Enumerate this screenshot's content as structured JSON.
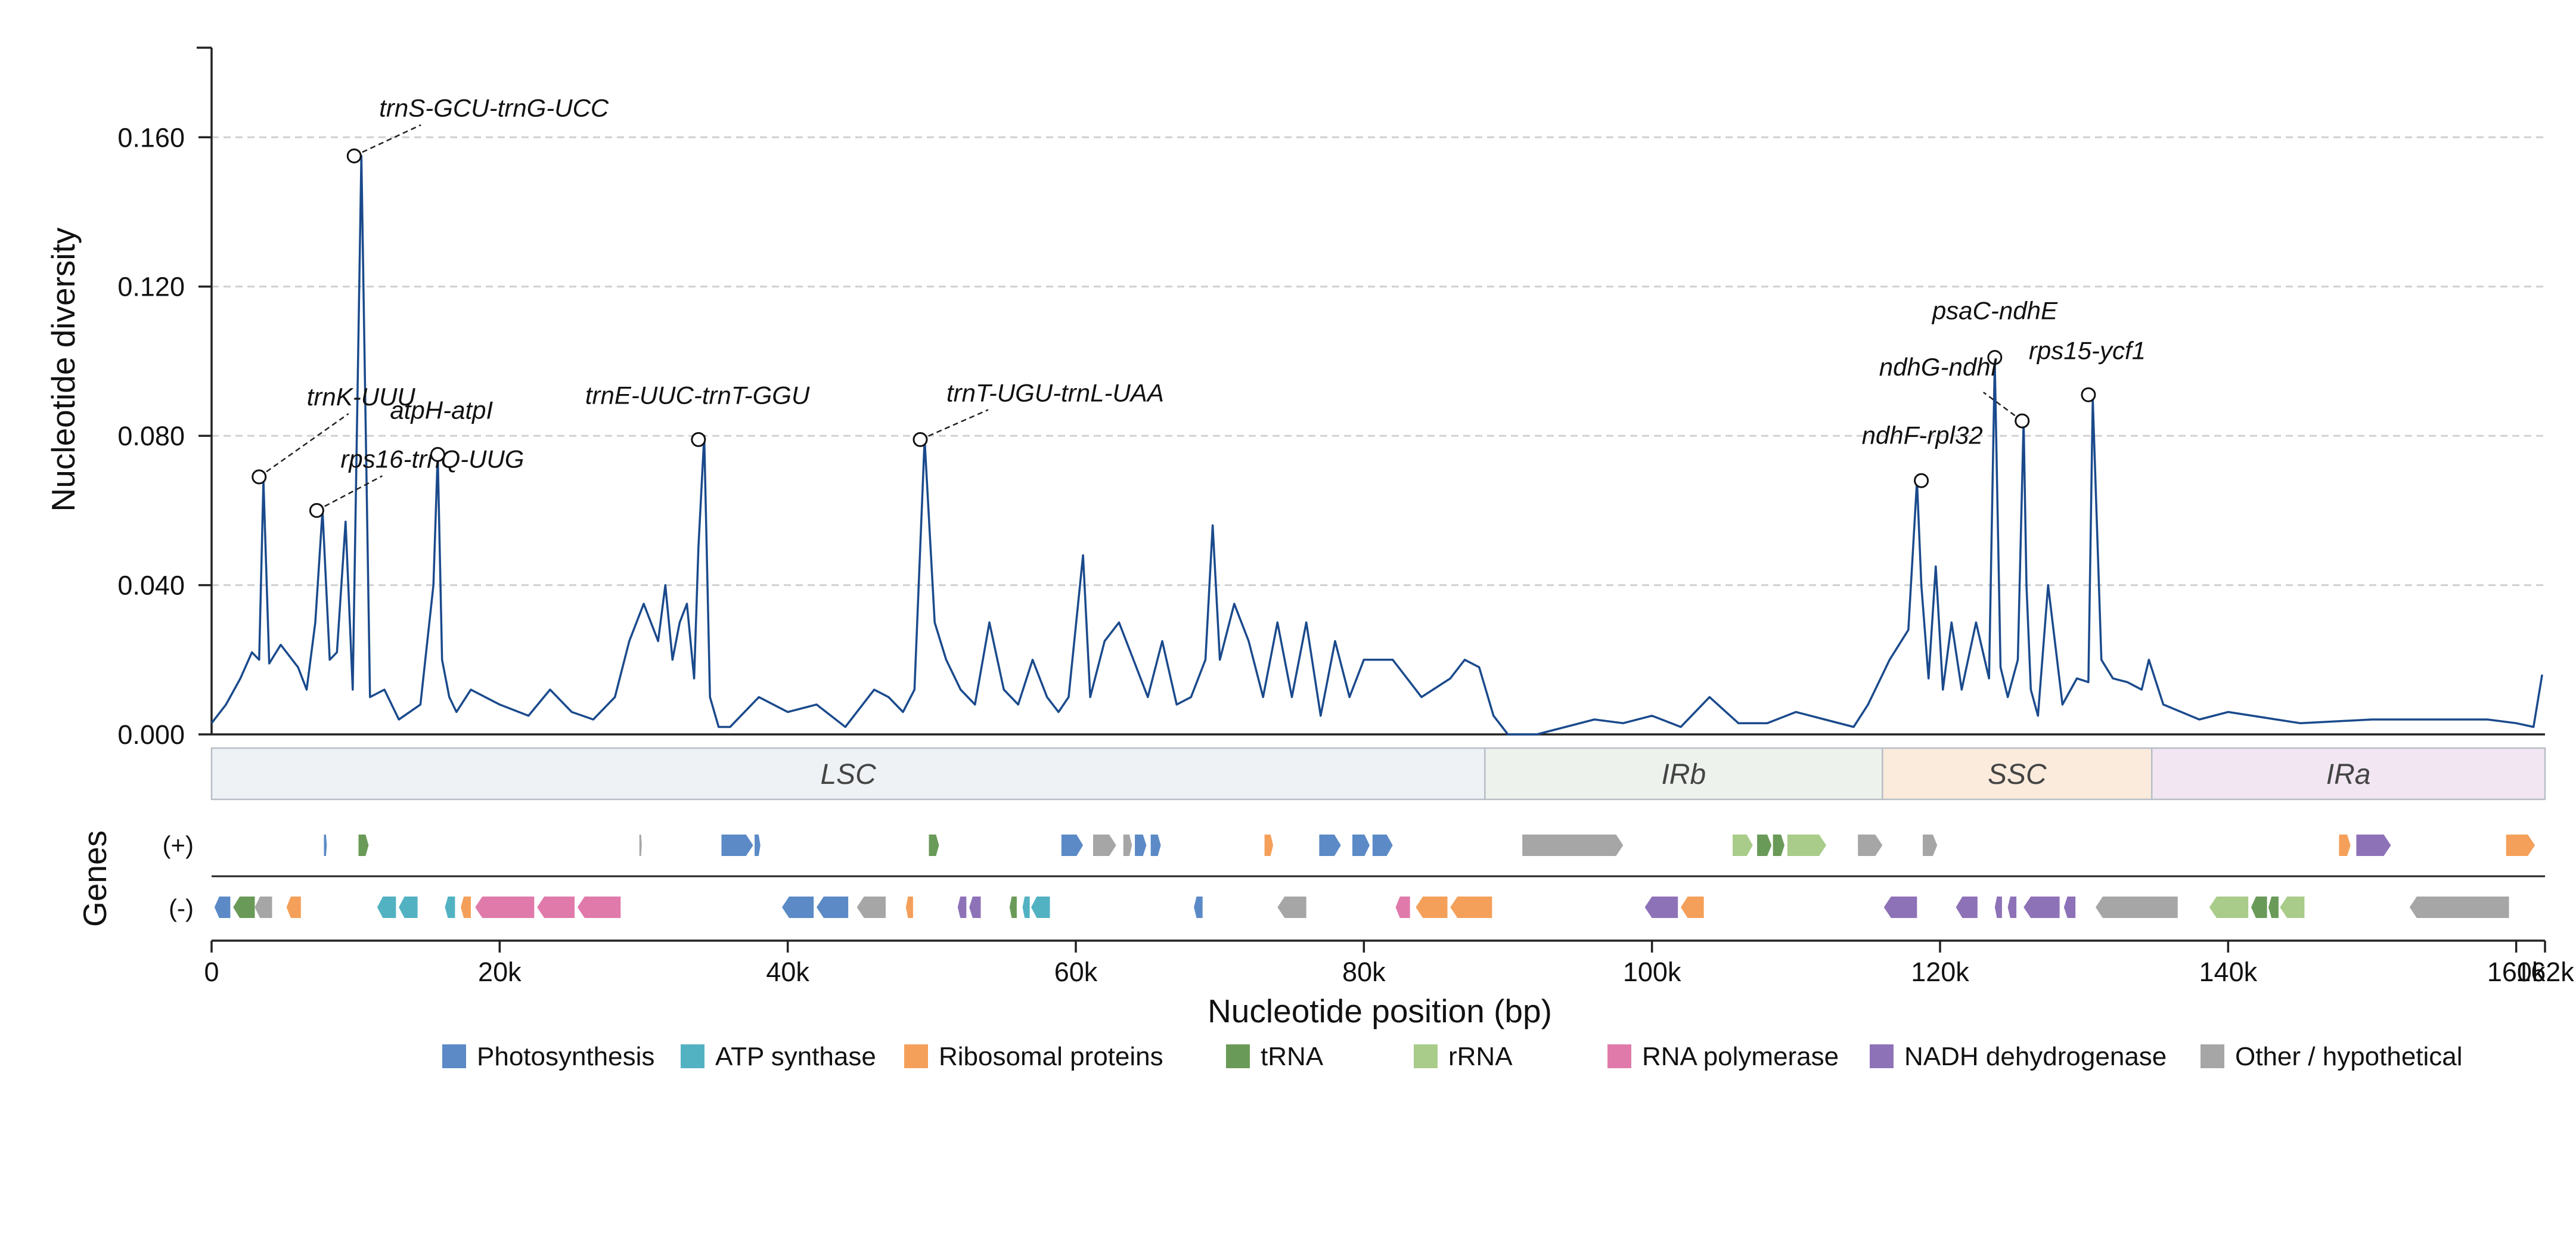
{
  "chart_data": {
    "type": "line",
    "ylabel": "Nucleotide diversity",
    "xlabel": "Nucleotide position (bp)",
    "genes_label": "Genes",
    "strand_labels": [
      "(+)",
      "(-)"
    ],
    "xlim": [
      0,
      162000
    ],
    "ylim": [
      0,
      0.184
    ],
    "grid": true,
    "yticks": [
      {
        "v": 0,
        "label": "0.000"
      },
      {
        "v": 0.04,
        "label": "0.040"
      },
      {
        "v": 0.08,
        "label": "0.080"
      },
      {
        "v": 0.12,
        "label": "0.120"
      },
      {
        "v": 0.16,
        "label": "0.160"
      }
    ],
    "xticks": [
      {
        "v": 0,
        "label": "0"
      },
      {
        "v": 20000,
        "label": "20k"
      },
      {
        "v": 40000,
        "label": "40k"
      },
      {
        "v": 60000,
        "label": "60k"
      },
      {
        "v": 80000,
        "label": "80k"
      },
      {
        "v": 100000,
        "label": "100k"
      },
      {
        "v": 120000,
        "label": "120k"
      },
      {
        "v": 140000,
        "label": "140k"
      },
      {
        "v": 160000,
        "label": "160k"
      },
      {
        "v": 162000,
        "label": "162k"
      }
    ],
    "series": [
      {
        "color": "#1a4a8c",
        "x": [
          0,
          1000,
          2000,
          2800,
          3300,
          3600,
          4000,
          4800,
          6000,
          6600,
          7200,
          7700,
          8200,
          8700,
          9300,
          9800,
          10400,
          11000,
          12000,
          13000,
          14500,
          15400,
          15700,
          16000,
          16500,
          17000,
          18000,
          20000,
          22000,
          23500,
          25000,
          26500,
          28000,
          29000,
          29500,
          30000,
          31000,
          31500,
          32000,
          32500,
          33000,
          33500,
          33800,
          34200,
          34600,
          35200,
          36000,
          38000,
          40000,
          42000,
          44000,
          46000,
          47000,
          48000,
          48800,
          49500,
          50200,
          51000,
          52000,
          53000,
          54000,
          55000,
          56000,
          57000,
          58000,
          58800,
          59500,
          60500,
          61000,
          62000,
          63000,
          64000,
          65000,
          66000,
          67000,
          68000,
          69000,
          69500,
          70000,
          71000,
          72000,
          73000,
          74000,
          75000,
          76000,
          77000,
          78000,
          79000,
          80000,
          82000,
          84000,
          86000,
          87000,
          88000,
          89000,
          90000,
          92000,
          96000,
          98000,
          100000,
          102000,
          104000,
          106000,
          108000,
          110000,
          112000,
          114000,
          115000,
          116500,
          117800,
          118400,
          118700,
          119200,
          119700,
          120200,
          120800,
          121500,
          122500,
          123400,
          123800,
          124200,
          124700,
          125400,
          125800,
          126000,
          126300,
          126800,
          127500,
          128500,
          129500,
          130300,
          130600,
          131200,
          132000,
          133000,
          134000,
          134500,
          135500,
          138000,
          140000,
          145000,
          150000,
          155000,
          158000,
          160000,
          161200,
          161800
        ],
        "y": [
          0.003,
          0.008,
          0.015,
          0.022,
          0.02,
          0.068,
          0.019,
          0.024,
          0.018,
          0.012,
          0.03,
          0.06,
          0.02,
          0.022,
          0.057,
          0.012,
          0.155,
          0.01,
          0.012,
          0.004,
          0.008,
          0.04,
          0.075,
          0.02,
          0.01,
          0.006,
          0.012,
          0.008,
          0.005,
          0.012,
          0.006,
          0.004,
          0.01,
          0.025,
          0.03,
          0.035,
          0.025,
          0.04,
          0.02,
          0.03,
          0.035,
          0.015,
          0.05,
          0.08,
          0.01,
          0.002,
          0.002,
          0.01,
          0.006,
          0.008,
          0.002,
          0.012,
          0.01,
          0.006,
          0.012,
          0.079,
          0.03,
          0.02,
          0.012,
          0.008,
          0.03,
          0.012,
          0.008,
          0.02,
          0.01,
          0.006,
          0.01,
          0.048,
          0.01,
          0.025,
          0.03,
          0.02,
          0.01,
          0.025,
          0.008,
          0.01,
          0.02,
          0.056,
          0.02,
          0.035,
          0.025,
          0.01,
          0.03,
          0.01,
          0.03,
          0.005,
          0.025,
          0.01,
          0.02,
          0.02,
          0.01,
          0.015,
          0.02,
          0.018,
          0.005,
          0.0,
          0.0,
          0.004,
          0.003,
          0.005,
          0.002,
          0.01,
          0.003,
          0.003,
          0.006,
          0.004,
          0.002,
          0.008,
          0.02,
          0.028,
          0.068,
          0.04,
          0.015,
          0.045,
          0.012,
          0.03,
          0.012,
          0.03,
          0.015,
          0.1,
          0.018,
          0.01,
          0.02,
          0.084,
          0.04,
          0.012,
          0.005,
          0.04,
          0.008,
          0.015,
          0.014,
          0.09,
          0.02,
          0.015,
          0.014,
          0.012,
          0.02,
          0.008,
          0.004,
          0.006,
          0.003,
          0.004,
          0.004,
          0.004,
          0.003,
          0.002,
          0.016
        ]
      }
    ],
    "annotations": [
      {
        "label": "trnK-UUU",
        "x": 3300,
        "y": 0.069
      },
      {
        "label": "rps16-trnQ-UUG",
        "x": 7300,
        "y": 0.06
      },
      {
        "label": "trnS-GCU-trnG-UCC",
        "x": 9900,
        "y": 0.155
      },
      {
        "label": "atpH-atpI",
        "x": 15700,
        "y": 0.075
      },
      {
        "label": "trnE-UUC-trnT-GGU",
        "x": 33800,
        "y": 0.079
      },
      {
        "label": "trnT-UGU-trnL-UAA",
        "x": 49200,
        "y": 0.079
      },
      {
        "label": "ndhF-rpl32",
        "x": 118700,
        "y": 0.068
      },
      {
        "label": "psaC-ndhE",
        "x": 123800,
        "y": 0.101
      },
      {
        "label": "ndhG-ndhI",
        "x": 125700,
        "y": 0.084
      },
      {
        "label": "rps15-ycf1",
        "x": 130300,
        "y": 0.091
      }
    ],
    "regions": [
      {
        "label": "LSC",
        "start": 0,
        "end": 88400,
        "color": "#eef2f5"
      },
      {
        "label": "IRb",
        "start": 88400,
        "end": 116000,
        "color": "#edf3ec"
      },
      {
        "label": "SSC",
        "start": 116000,
        "end": 134700,
        "color": "#faebdc"
      },
      {
        "label": "IRa",
        "start": 134700,
        "end": 162000,
        "color": "#f2e6f2"
      }
    ],
    "legend": [
      {
        "label": "Photosynthesis",
        "color": "#5b8ac6"
      },
      {
        "label": "ATP synthase",
        "color": "#52b2c2"
      },
      {
        "label": "Ribosomal proteins",
        "color": "#f4a05a"
      },
      {
        "label": "tRNA",
        "color": "#6a9a58"
      },
      {
        "label": "rRNA",
        "color": "#a9cc8a"
      },
      {
        "label": "RNA polymerase",
        "color": "#e07aaa"
      },
      {
        "label": "NADH dehydrogenase",
        "color": "#8e72b8"
      },
      {
        "label": "Other / hypothetical",
        "color": "#a6a6a6"
      }
    ],
    "genes": [
      {
        "strand": "+",
        "start": 7800,
        "end": 8000,
        "cat": "Photosynthesis"
      },
      {
        "strand": "+",
        "start": 10200,
        "end": 10900,
        "cat": "tRNA"
      },
      {
        "strand": "+",
        "start": 29700,
        "end": 29850,
        "cat": "Other / hypothetical"
      },
      {
        "strand": "+",
        "start": 35400,
        "end": 37600,
        "cat": "Photosynthesis"
      },
      {
        "strand": "+",
        "start": 37700,
        "end": 38100,
        "cat": "Photosynthesis"
      },
      {
        "strand": "+",
        "start": 49800,
        "end": 50500,
        "cat": "tRNA"
      },
      {
        "strand": "+",
        "start": 59000,
        "end": 60500,
        "cat": "Photosynthesis"
      },
      {
        "strand": "+",
        "start": 61200,
        "end": 62800,
        "cat": "Other / hypothetical"
      },
      {
        "strand": "+",
        "start": 63300,
        "end": 63900,
        "cat": "Other / hypothetical"
      },
      {
        "strand": "+",
        "start": 64100,
        "end": 64900,
        "cat": "Photosynthesis"
      },
      {
        "strand": "+",
        "start": 65200,
        "end": 65900,
        "cat": "Photosynthesis"
      },
      {
        "strand": "+",
        "start": 73100,
        "end": 73700,
        "cat": "Ribosomal proteins"
      },
      {
        "strand": "+",
        "start": 76900,
        "end": 78400,
        "cat": "Photosynthesis"
      },
      {
        "strand": "+",
        "start": 79200,
        "end": 80400,
        "cat": "Photosynthesis"
      },
      {
        "strand": "+",
        "start": 80600,
        "end": 82000,
        "cat": "Photosynthesis"
      },
      {
        "strand": "+",
        "start": 91000,
        "end": 98000,
        "cat": "Other / hypothetical"
      },
      {
        "strand": "+",
        "start": 105600,
        "end": 107000,
        "cat": "rRNA"
      },
      {
        "strand": "+",
        "start": 107300,
        "end": 108300,
        "cat": "tRNA"
      },
      {
        "strand": "+",
        "start": 108400,
        "end": 109200,
        "cat": "tRNA"
      },
      {
        "strand": "+",
        "start": 109400,
        "end": 112100,
        "cat": "rRNA"
      },
      {
        "strand": "+",
        "start": 114300,
        "end": 116000,
        "cat": "Other / hypothetical"
      },
      {
        "strand": "+",
        "start": 118800,
        "end": 119800,
        "cat": "Other / hypothetical"
      },
      {
        "strand": "+",
        "start": 147700,
        "end": 148500,
        "cat": "Ribosomal proteins"
      },
      {
        "strand": "+",
        "start": 148900,
        "end": 151300,
        "cat": "NADH dehydrogenase"
      },
      {
        "strand": "+",
        "start": 159300,
        "end": 161300,
        "cat": "Ribosomal proteins"
      },
      {
        "strand": "-",
        "start": 200,
        "end": 1300,
        "cat": "Photosynthesis"
      },
      {
        "strand": "-",
        "start": 1500,
        "end": 3000,
        "cat": "tRNA"
      },
      {
        "strand": "-",
        "start": 3000,
        "end": 4200,
        "cat": "Other / hypothetical"
      },
      {
        "strand": "-",
        "start": 5200,
        "end": 6200,
        "cat": "Ribosomal proteins"
      },
      {
        "strand": "-",
        "start": 11500,
        "end": 12800,
        "cat": "ATP synthase"
      },
      {
        "strand": "-",
        "start": 13000,
        "end": 14300,
        "cat": "ATP synthase"
      },
      {
        "strand": "-",
        "start": 16200,
        "end": 16900,
        "cat": "ATP synthase"
      },
      {
        "strand": "-",
        "start": 17300,
        "end": 18000,
        "cat": "Ribosomal proteins"
      },
      {
        "strand": "-",
        "start": 18300,
        "end": 22400,
        "cat": "RNA polymerase"
      },
      {
        "strand": "-",
        "start": 22600,
        "end": 25200,
        "cat": "RNA polymerase"
      },
      {
        "strand": "-",
        "start": 25400,
        "end": 28400,
        "cat": "RNA polymerase"
      },
      {
        "strand": "-",
        "start": 39600,
        "end": 41800,
        "cat": "Photosynthesis"
      },
      {
        "strand": "-",
        "start": 42000,
        "end": 44200,
        "cat": "Photosynthesis"
      },
      {
        "strand": "-",
        "start": 44800,
        "end": 46800,
        "cat": "Other / hypothetical"
      },
      {
        "strand": "-",
        "start": 48200,
        "end": 48700,
        "cat": "Ribosomal proteins"
      },
      {
        "strand": "-",
        "start": 51800,
        "end": 52400,
        "cat": "NADH dehydrogenase"
      },
      {
        "strand": "-",
        "start": 52600,
        "end": 53400,
        "cat": "NADH dehydrogenase"
      },
      {
        "strand": "-",
        "start": 55400,
        "end": 55900,
        "cat": "tRNA"
      },
      {
        "strand": "-",
        "start": 56300,
        "end": 56800,
        "cat": "ATP synthase"
      },
      {
        "strand": "-",
        "start": 56900,
        "end": 58200,
        "cat": "ATP synthase"
      },
      {
        "strand": "-",
        "start": 68200,
        "end": 68800,
        "cat": "Photosynthesis"
      },
      {
        "strand": "-",
        "start": 74000,
        "end": 76000,
        "cat": "Other / hypothetical"
      },
      {
        "strand": "-",
        "start": 82200,
        "end": 83200,
        "cat": "RNA polymerase"
      },
      {
        "strand": "-",
        "start": 83600,
        "end": 85800,
        "cat": "Ribosomal proteins"
      },
      {
        "strand": "-",
        "start": 86000,
        "end": 88900,
        "cat": "Ribosomal proteins"
      },
      {
        "strand": "-",
        "start": 99500,
        "end": 101800,
        "cat": "NADH dehydrogenase"
      },
      {
        "strand": "-",
        "start": 102000,
        "end": 103600,
        "cat": "Ribosomal proteins"
      },
      {
        "strand": "-",
        "start": 116100,
        "end": 118400,
        "cat": "NADH dehydrogenase"
      },
      {
        "strand": "-",
        "start": 121100,
        "end": 122600,
        "cat": "NADH dehydrogenase"
      },
      {
        "strand": "-",
        "start": 123800,
        "end": 124300,
        "cat": "NADH dehydrogenase"
      },
      {
        "strand": "-",
        "start": 124700,
        "end": 125300,
        "cat": "NADH dehydrogenase"
      },
      {
        "strand": "-",
        "start": 125800,
        "end": 128300,
        "cat": "NADH dehydrogenase"
      },
      {
        "strand": "-",
        "start": 128600,
        "end": 129400,
        "cat": "NADH dehydrogenase"
      },
      {
        "strand": "-",
        "start": 130800,
        "end": 136500,
        "cat": "Other / hypothetical"
      },
      {
        "strand": "-",
        "start": 138700,
        "end": 141400,
        "cat": "rRNA"
      },
      {
        "strand": "-",
        "start": 141600,
        "end": 142700,
        "cat": "tRNA"
      },
      {
        "strand": "-",
        "start": 142800,
        "end": 143500,
        "cat": "tRNA"
      },
      {
        "strand": "-",
        "start": 143600,
        "end": 145300,
        "cat": "rRNA"
      },
      {
        "strand": "-",
        "start": 152600,
        "end": 159500,
        "cat": "Other / hypothetical"
      }
    ]
  }
}
